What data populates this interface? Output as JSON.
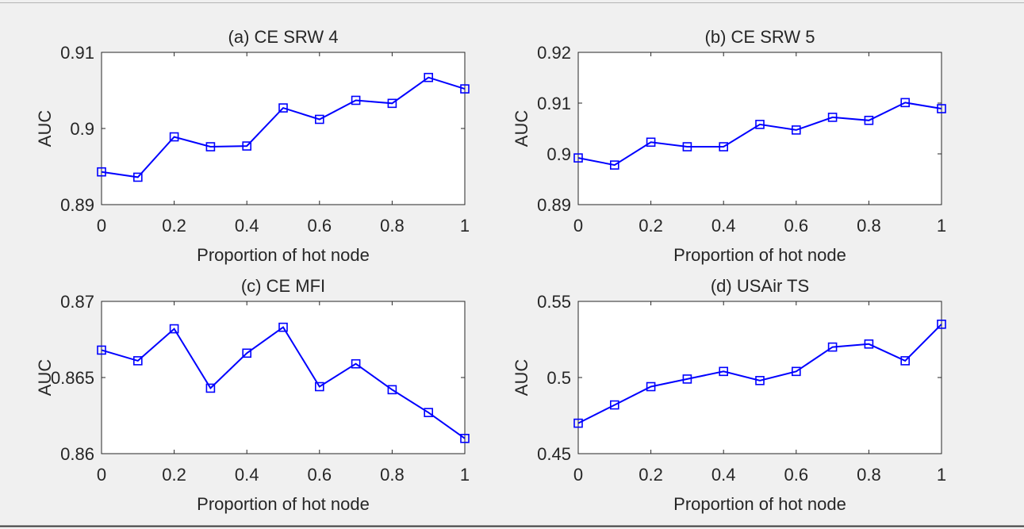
{
  "chart_data": [
    {
      "type": "line",
      "title": "(a) CE SRW 4",
      "xlabel": "Proportion of hot node",
      "ylabel": "AUC",
      "xlim": [
        0,
        1
      ],
      "ylim": [
        0.89,
        0.91
      ],
      "xticks": [
        "0",
        "0.2",
        "0.4",
        "0.6",
        "0.8",
        "1"
      ],
      "yticks": [
        "0.89",
        "0.9",
        "0.91"
      ],
      "grid": false,
      "marker": "square",
      "color": "#0000ff",
      "x": [
        0,
        0.1,
        0.2,
        0.3,
        0.4,
        0.5,
        0.6,
        0.7,
        0.8,
        0.9,
        1.0
      ],
      "y": [
        0.8943,
        0.8936,
        0.8989,
        0.8976,
        0.8977,
        0.9027,
        0.9012,
        0.9037,
        0.9033,
        0.9067,
        0.9052
      ]
    },
    {
      "type": "line",
      "title": "(b) CE SRW 5",
      "xlabel": "Proportion of hot node",
      "ylabel": "AUC",
      "xlim": [
        0,
        1
      ],
      "ylim": [
        0.89,
        0.92
      ],
      "xticks": [
        "0",
        "0.2",
        "0.4",
        "0.6",
        "0.8",
        "1"
      ],
      "yticks": [
        "0.89",
        "0.9",
        "0.91",
        "0.92"
      ],
      "grid": false,
      "marker": "square",
      "color": "#0000ff",
      "x": [
        0,
        0.1,
        0.2,
        0.3,
        0.4,
        0.5,
        0.6,
        0.7,
        0.8,
        0.9,
        1.0
      ],
      "y": [
        0.8992,
        0.8978,
        0.9023,
        0.9014,
        0.9014,
        0.9058,
        0.9047,
        0.9072,
        0.9066,
        0.9101,
        0.9089
      ]
    },
    {
      "type": "line",
      "title": "(c) CE MFI",
      "xlabel": "Proportion of hot node",
      "ylabel": "AUC",
      "xlim": [
        0,
        1
      ],
      "ylim": [
        0.86,
        0.87
      ],
      "xticks": [
        "0",
        "0.2",
        "0.4",
        "0.6",
        "0.8",
        "1"
      ],
      "yticks": [
        "0.86",
        "0.865",
        "0.87"
      ],
      "grid": false,
      "marker": "square",
      "color": "#0000ff",
      "x": [
        0,
        0.1,
        0.2,
        0.3,
        0.4,
        0.5,
        0.6,
        0.7,
        0.8,
        0.9,
        1.0
      ],
      "y": [
        0.8668,
        0.8661,
        0.8682,
        0.8643,
        0.8666,
        0.8683,
        0.8644,
        0.8659,
        0.8642,
        0.8627,
        0.861
      ]
    },
    {
      "type": "line",
      "title": "(d) USAir TS",
      "xlabel": "Proportion of hot node",
      "ylabel": "AUC",
      "xlim": [
        0,
        1
      ],
      "ylim": [
        0.45,
        0.55
      ],
      "xticks": [
        "0",
        "0.2",
        "0.4",
        "0.6",
        "0.8",
        "1"
      ],
      "yticks": [
        "0.45",
        "0.5",
        "0.55"
      ],
      "grid": false,
      "marker": "square",
      "color": "#0000ff",
      "x": [
        0,
        0.1,
        0.2,
        0.3,
        0.4,
        0.5,
        0.6,
        0.7,
        0.8,
        0.9,
        1.0
      ],
      "y": [
        0.47,
        0.482,
        0.494,
        0.499,
        0.504,
        0.498,
        0.504,
        0.52,
        0.522,
        0.511,
        0.535
      ]
    }
  ]
}
